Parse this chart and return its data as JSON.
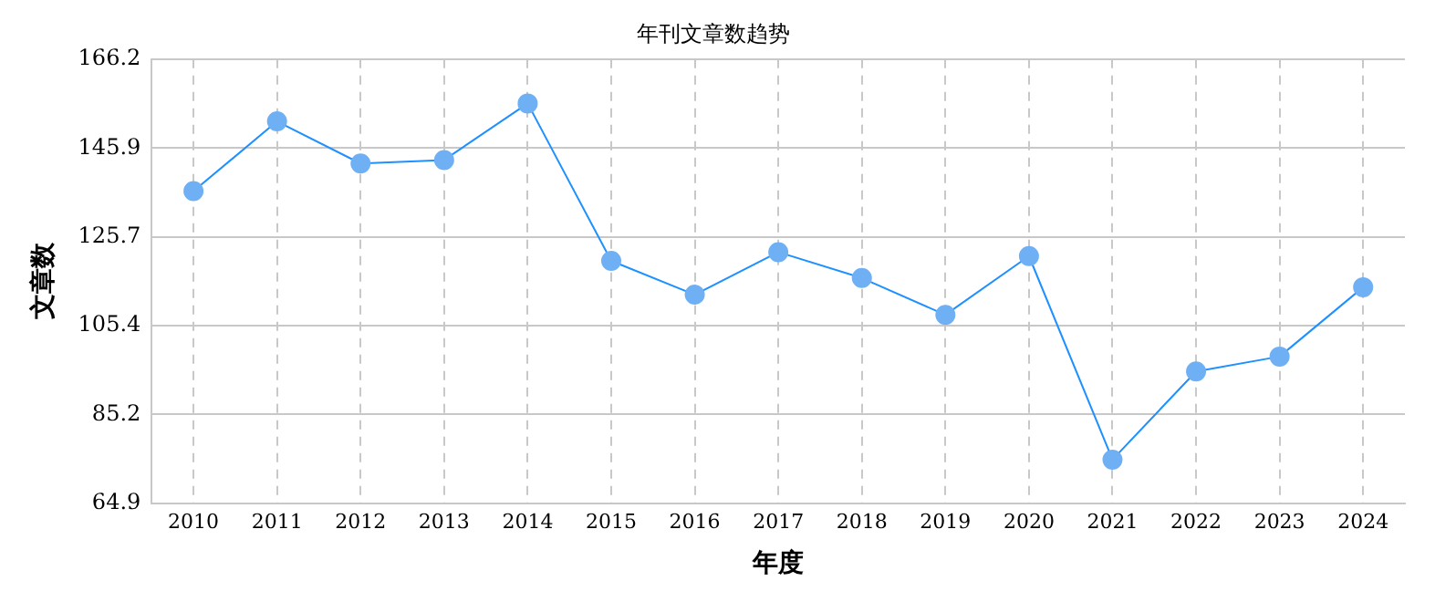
{
  "chart_data": {
    "type": "line",
    "title": "年刊文章数趋势",
    "xlabel": "年度",
    "ylabel": "文章数",
    "categories": [
      "2010",
      "2011",
      "2012",
      "2013",
      "2014",
      "2015",
      "2016",
      "2017",
      "2018",
      "2019",
      "2020",
      "2021",
      "2022",
      "2023",
      "2024"
    ],
    "series": [
      {
        "color": "#1e90ff",
        "values": [
          136.1,
          152.0,
          142.4,
          143.2,
          156.1,
          120.2,
          112.5,
          122.2,
          116.3,
          107.9,
          121.3,
          74.9,
          95.0,
          98.4,
          114.2
        ]
      }
    ],
    "ylim": [
      64.9,
      166.2
    ],
    "yticks": [
      64.9,
      85.2,
      105.4,
      125.7,
      145.9,
      166.2
    ],
    "grid": true,
    "marker": "circle",
    "line_style": "solid",
    "legend": false
  }
}
